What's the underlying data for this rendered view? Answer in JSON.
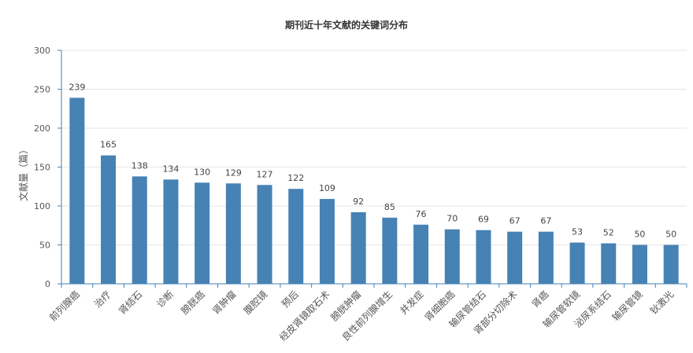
{
  "chart_data": {
    "type": "bar",
    "title": "期刊近十年文献的关键词分布",
    "xlabel": "",
    "ylabel": "文献量（篇）",
    "ylim": [
      0,
      300
    ],
    "yticks": [
      0,
      50,
      100,
      150,
      200,
      250,
      300
    ],
    "categories": [
      "前列腺癌",
      "治疗",
      "肾结石",
      "诊断",
      "膀胱癌",
      "肾肿瘤",
      "腹腔镜",
      "预后",
      "经皮肾镜取石术",
      "膀胱肿瘤",
      "良性前列腺增生",
      "并发症",
      "肾细胞癌",
      "输尿管结石",
      "肾部分切除术",
      "肾癌",
      "输尿管软镜",
      "泌尿系结石",
      "输尿管镜",
      "钬激光"
    ],
    "values": [
      239,
      165,
      138,
      134,
      130,
      129,
      127,
      122,
      109,
      92,
      85,
      76,
      70,
      69,
      67,
      67,
      53,
      52,
      50,
      50
    ],
    "bar_color": "#4682b4",
    "grid": true
  }
}
